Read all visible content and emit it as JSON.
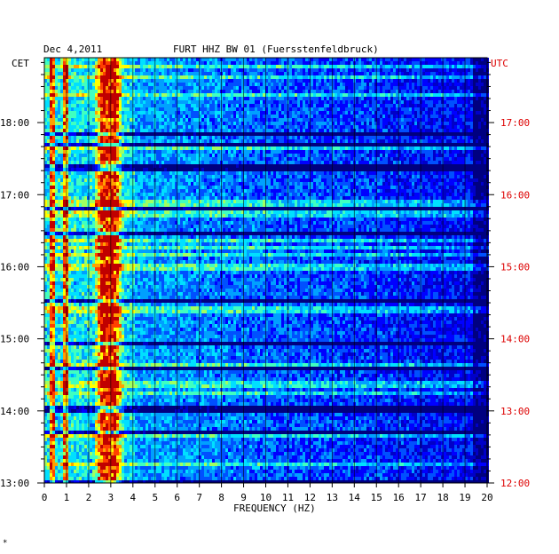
{
  "header": {
    "date": "Dec 4,2011",
    "station": "FURT HHZ BW 01 (Fuersstenfeldbruck)"
  },
  "chart_data": {
    "type": "heatmap",
    "title": "FURT HHZ BW 01 (Fuersstenfeldbruck)",
    "date": "Dec 4,2011",
    "xlabel": "FREQUENCY (HZ)",
    "xlim": [
      0,
      20
    ],
    "x_ticks": [
      "0",
      "1",
      "2",
      "3",
      "4",
      "5",
      "6",
      "7",
      "8",
      "9",
      "10",
      "11",
      "12",
      "13",
      "14",
      "15",
      "16",
      "17",
      "18",
      "19",
      "20"
    ],
    "left_axis_label": "CET",
    "right_axis_label": "UTC",
    "left_time_ticks": [
      "18:00",
      "17:00",
      "16:00",
      "15:00",
      "14:00",
      "13:00"
    ],
    "right_time_ticks": [
      "17:00",
      "16:00",
      "15:00",
      "14:00",
      "13:00",
      "12:00"
    ],
    "time_range_cet_hours": [
      13.0,
      18.9
    ],
    "colormap": [
      "#000080",
      "#0000c8",
      "#0000ff",
      "#0050ff",
      "#00a0ff",
      "#00e0ff",
      "#40ffc0",
      "#a0ff60",
      "#ffff00",
      "#ffa000",
      "#ff4000",
      "#c00000"
    ],
    "dominant_bands_hz": [
      0.3,
      0.9,
      2.6,
      3.1
    ]
  },
  "colors": {
    "background": "#ffffff",
    "gridline": "#000000",
    "utc_text": "#dd0000"
  },
  "footer": {
    "mark": "*"
  }
}
